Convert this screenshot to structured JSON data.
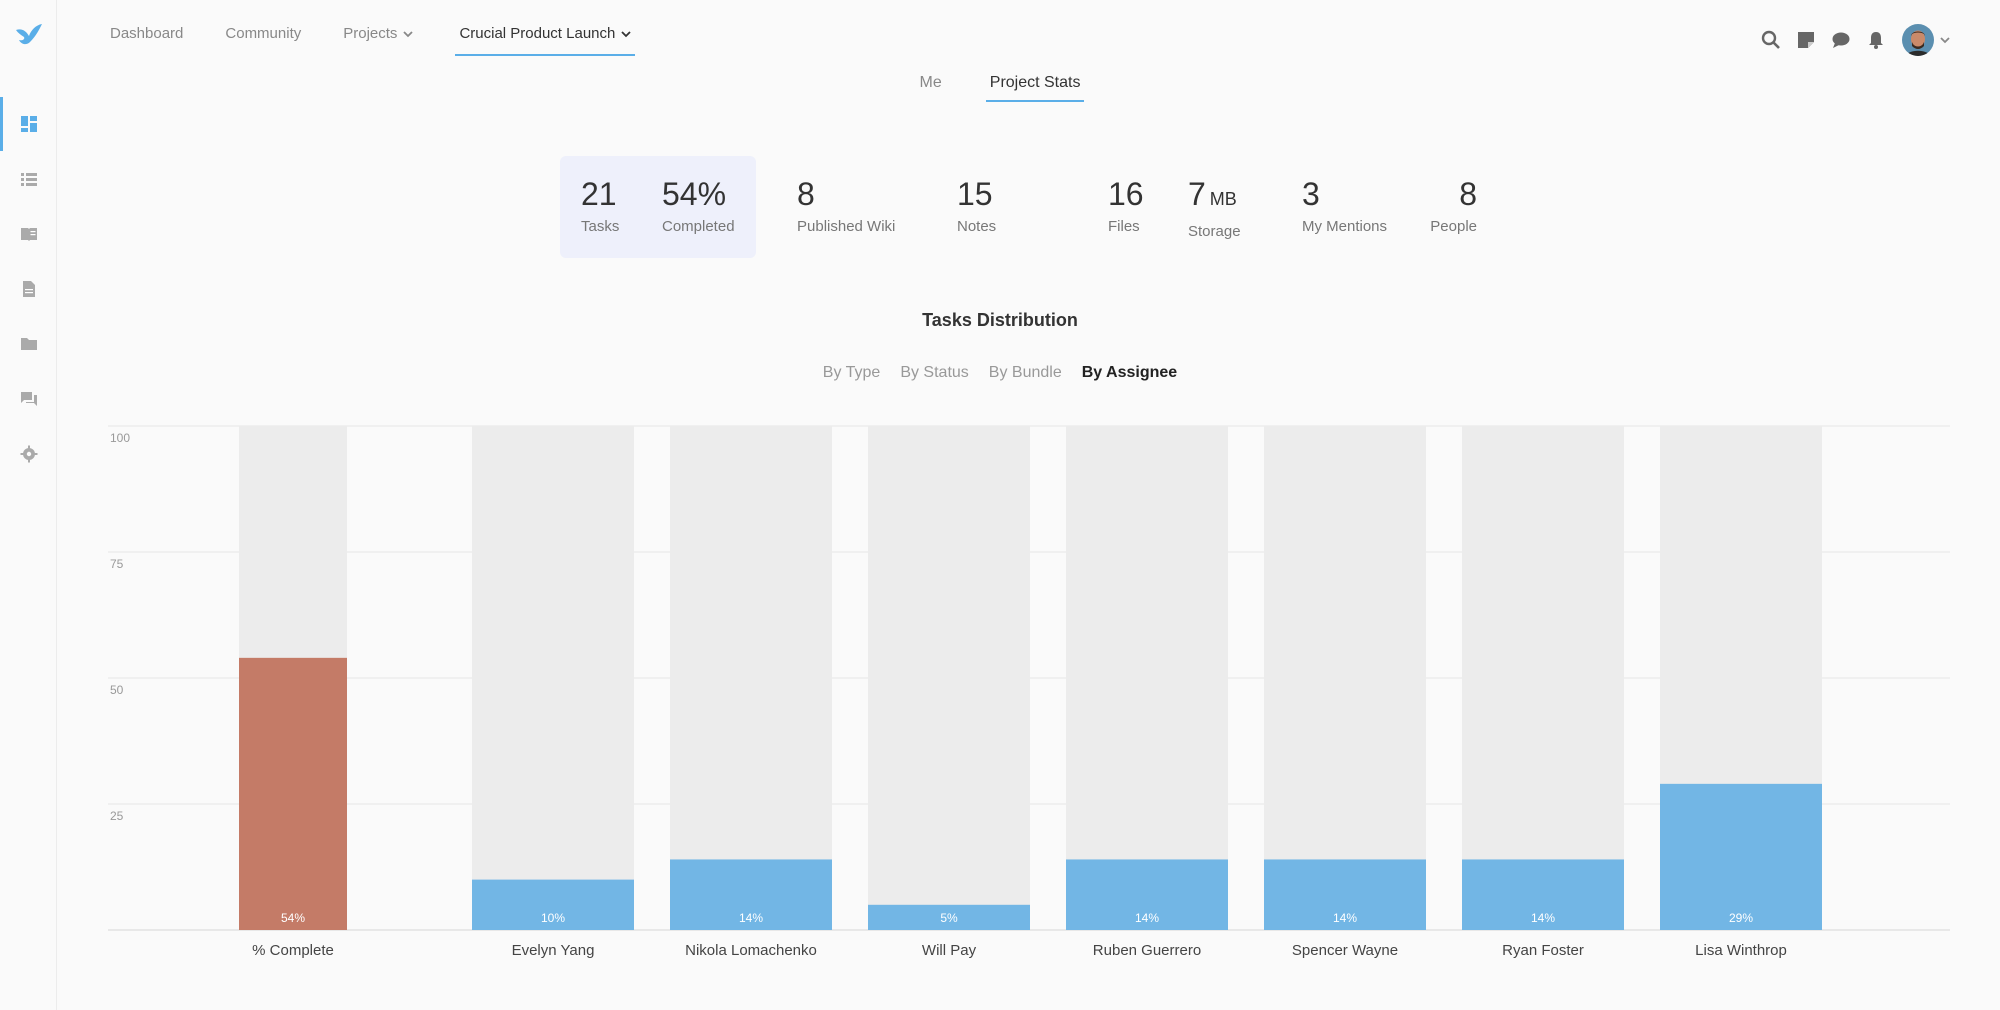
{
  "nav": {
    "items": [
      {
        "label": "Dashboard",
        "dropdown": false
      },
      {
        "label": "Community",
        "dropdown": false
      },
      {
        "label": "Projects",
        "dropdown": true
      },
      {
        "label": "Crucial Product Launch",
        "dropdown": true,
        "active": true
      }
    ]
  },
  "sidebar": {
    "items": [
      "dashboard-icon",
      "list-icon",
      "wiki-icon",
      "notes-icon",
      "folder-icon",
      "chat-icon",
      "settings-icon"
    ]
  },
  "top_icons": [
    "search-icon",
    "sticky-note-icon",
    "chat-bubble-icon",
    "bell-icon"
  ],
  "subtabs": {
    "me": "Me",
    "project_stats": "Project Stats"
  },
  "stats": {
    "tasks": {
      "num": "21",
      "label": "Tasks"
    },
    "completed": {
      "num": "54%",
      "label": "Completed"
    },
    "wiki": {
      "num": "8",
      "label": "Published Wiki"
    },
    "notes": {
      "num": "15",
      "label": "Notes"
    },
    "files": {
      "num": "16",
      "label": "Files"
    },
    "storage": {
      "num": "7",
      "unit": "MB",
      "label": "Storage"
    },
    "mentions": {
      "num": "3",
      "label": "My Mentions"
    },
    "people": {
      "num": "8",
      "label": "People"
    }
  },
  "distribution": {
    "title": "Tasks Distribution",
    "tabs": [
      "By Type",
      "By Status",
      "By Bundle",
      "By Assignee"
    ],
    "active_tab": "By Assignee"
  },
  "colors": {
    "accent": "#5aaee8",
    "complete_bar": "#c47b67",
    "assignee_bar": "#72b6e5",
    "track": "#ececec"
  },
  "chart_data": {
    "type": "bar",
    "categories": [
      "% Complete",
      "Evelyn Yang",
      "Nikola Lomachenko",
      "Will Pay",
      "Ruben Guerrero",
      "Spencer Wayne",
      "Ryan Foster",
      "Lisa Winthrop"
    ],
    "values": [
      54,
      10,
      14,
      5,
      14,
      14,
      14,
      29
    ],
    "data_labels": [
      "54%",
      "10%",
      "14%",
      "5%",
      "14%",
      "14%",
      "14%",
      "29%"
    ],
    "yticks": [
      "25",
      "50",
      "75",
      "100"
    ],
    "ylim": [
      0,
      100
    ],
    "grid": true
  }
}
